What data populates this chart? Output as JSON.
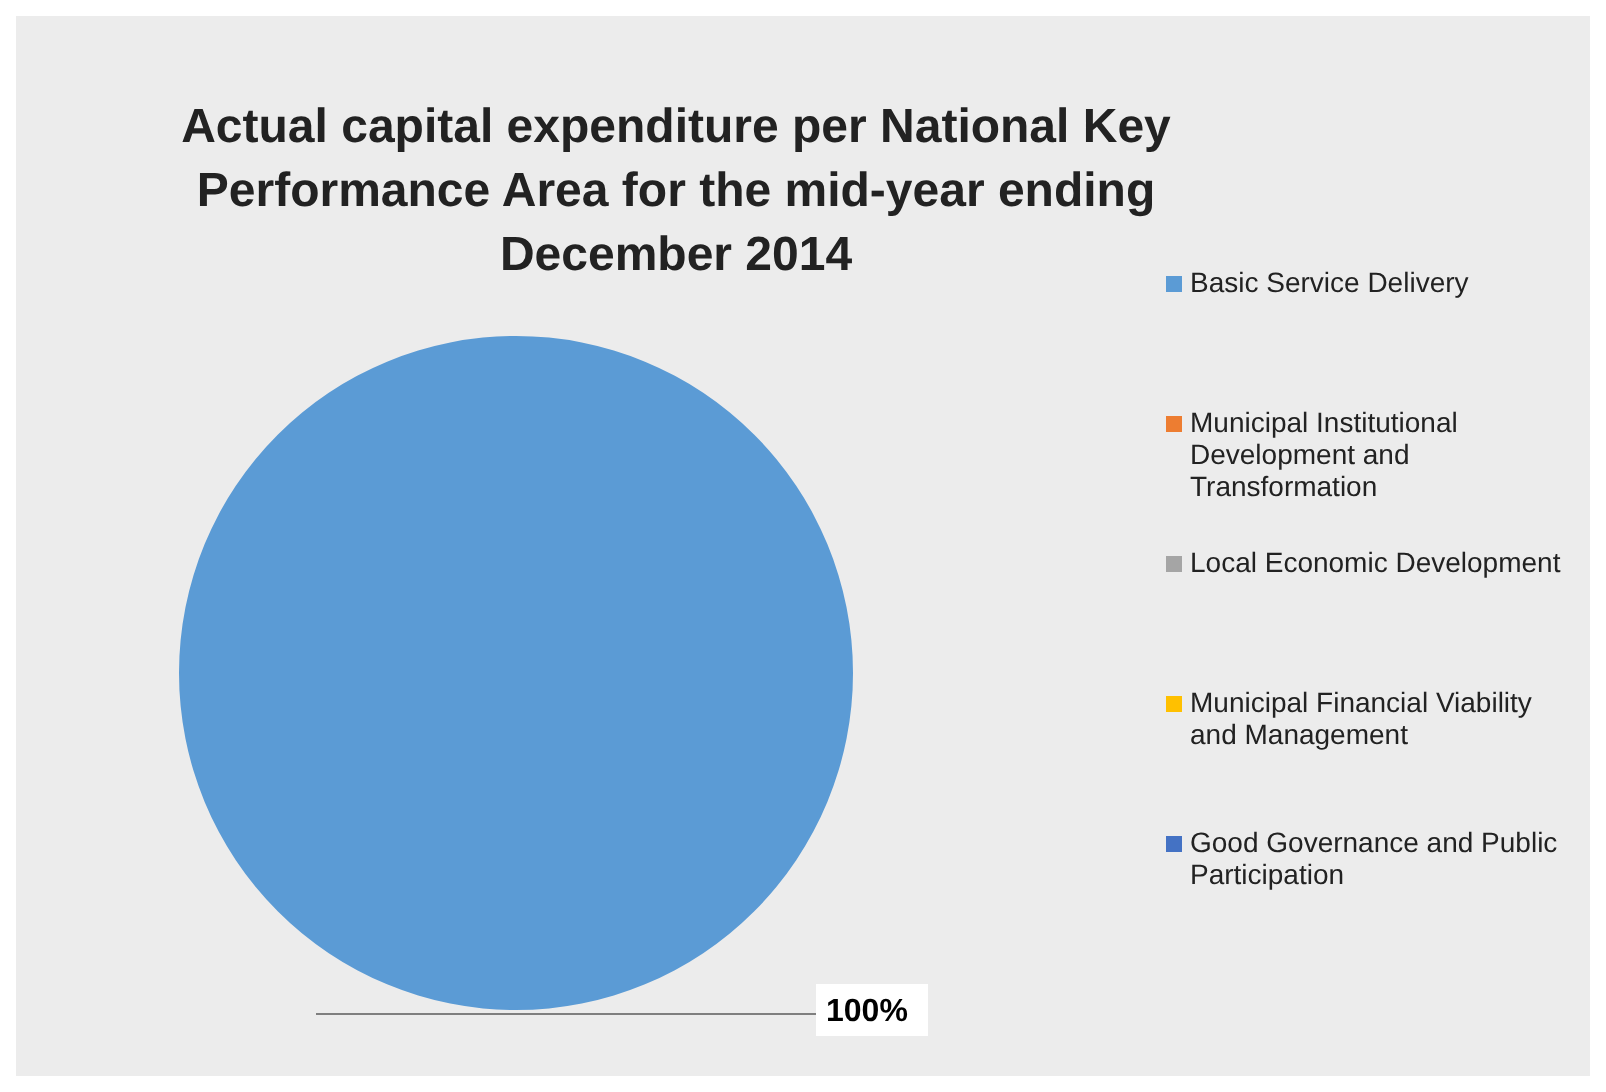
{
  "chart_data": {
    "type": "pie",
    "title": "Actual capital expenditure per National Key Performance Area for the mid-year ending December 2014",
    "categories": [
      "Basic Service Delivery",
      "Municipal Institutional Development and Transformation",
      "Local Economic Development",
      "Municipal Financial Viability and Management",
      "Good Governance and Public Participation"
    ],
    "values": [
      100,
      0,
      0,
      0,
      0
    ],
    "colors": [
      "#5b9bd5",
      "#ed7d31",
      "#a5a5a5",
      "#ffc000",
      "#4472c4"
    ],
    "value_labels": [
      "100%",
      null,
      null,
      null,
      null
    ],
    "legend": "right"
  }
}
